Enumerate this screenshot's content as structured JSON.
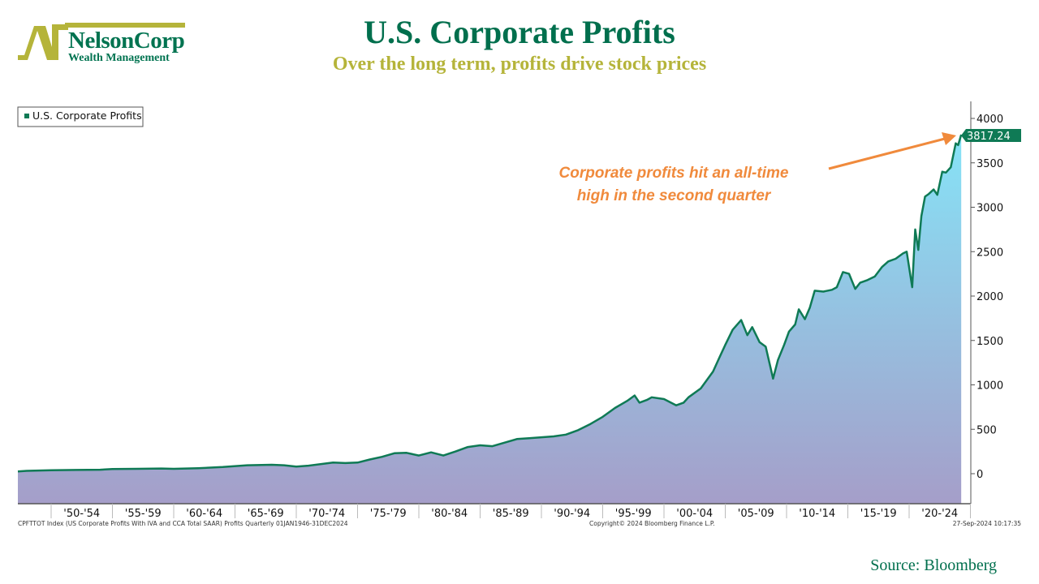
{
  "logo": {
    "name": "NelsonCorp",
    "sub": "Wealth Management"
  },
  "header": {
    "title": "U.S. Corporate Profits",
    "subtitle": "Over the long term, profits drive stock prices"
  },
  "footer": {
    "description": "CPFTTOT Index (US Corporate Profits With IVA and CCA Total SAAR) Profits  Quarterly 01JAN1946-31DEC2024",
    "copyright": "Copyright© 2024 Bloomberg Finance L.P.",
    "timestamp": "27-Sep-2024 10:17:35",
    "source": "Source: Bloomberg"
  },
  "colors": {
    "line": "#0f7a55",
    "fill_top": "#86e3f7",
    "fill_bottom": "#a59ec9",
    "annotation": "#f08a3c",
    "title": "#006f4d",
    "subtitle": "#b5b43a"
  },
  "chart_data": {
    "type": "area",
    "legend": {
      "label": "U.S. Corporate Profits",
      "placement": "top-left"
    },
    "last_value_label": "3817.24",
    "annotation": {
      "line1": "Corporate profits hit an all-time",
      "line2": "high in the second quarter"
    },
    "xlim": [
      1946,
      2025
    ],
    "ylim": [
      -350,
      4200
    ],
    "y_ticks": [
      0,
      500,
      1000,
      1500,
      2000,
      2500,
      3000,
      3500,
      4000
    ],
    "x_tick_labels": [
      "'50-'54",
      "'55-'59",
      "'60-'64",
      "'65-'69",
      "'70-'74",
      "'75-'79",
      "'80-'84",
      "'85-'89",
      "'90-'94",
      "'95-'99",
      "'00-'04",
      "'05-'09",
      "'10-'14",
      "'15-'19",
      "'20-'24"
    ],
    "x_tick_starts": [
      1950,
      1955,
      1960,
      1965,
      1970,
      1975,
      1980,
      1985,
      1990,
      1995,
      2000,
      2005,
      2010,
      2015,
      2020
    ],
    "points": [
      [
        1946.5,
        25
      ],
      [
        1948,
        32
      ],
      [
        1950,
        38
      ],
      [
        1952,
        42
      ],
      [
        1954,
        45
      ],
      [
        1955,
        52
      ],
      [
        1957,
        55
      ],
      [
        1959,
        58
      ],
      [
        1960,
        55
      ],
      [
        1962,
        62
      ],
      [
        1964,
        75
      ],
      [
        1966,
        95
      ],
      [
        1968,
        100
      ],
      [
        1969,
        95
      ],
      [
        1970,
        80
      ],
      [
        1971,
        90
      ],
      [
        1973,
        125
      ],
      [
        1974,
        120
      ],
      [
        1975,
        125
      ],
      [
        1976,
        160
      ],
      [
        1977,
        190
      ],
      [
        1978,
        230
      ],
      [
        1979,
        235
      ],
      [
        1980,
        205
      ],
      [
        1981,
        240
      ],
      [
        1982,
        205
      ],
      [
        1983,
        250
      ],
      [
        1984,
        300
      ],
      [
        1985,
        320
      ],
      [
        1986,
        310
      ],
      [
        1987,
        350
      ],
      [
        1988,
        390
      ],
      [
        1989,
        400
      ],
      [
        1990,
        410
      ],
      [
        1991,
        420
      ],
      [
        1992,
        440
      ],
      [
        1993,
        490
      ],
      [
        1994,
        560
      ],
      [
        1995,
        640
      ],
      [
        1996,
        740
      ],
      [
        1997,
        820
      ],
      [
        1997.6,
        880
      ],
      [
        1998,
        800
      ],
      [
        1998.6,
        830
      ],
      [
        1999,
        860
      ],
      [
        2000,
        840
      ],
      [
        2001,
        770
      ],
      [
        2001.6,
        800
      ],
      [
        2002,
        860
      ],
      [
        2003,
        960
      ],
      [
        2004,
        1150
      ],
      [
        2004.5,
        1300
      ],
      [
        2005,
        1450
      ],
      [
        2005.6,
        1620
      ],
      [
        2006.3,
        1730
      ],
      [
        2006.8,
        1560
      ],
      [
        2007.2,
        1650
      ],
      [
        2007.8,
        1480
      ],
      [
        2008.3,
        1430
      ],
      [
        2008.9,
        1070
      ],
      [
        2009.3,
        1280
      ],
      [
        2009.8,
        1450
      ],
      [
        2010.2,
        1600
      ],
      [
        2010.7,
        1680
      ],
      [
        2011,
        1850
      ],
      [
        2011.5,
        1740
      ],
      [
        2011.9,
        1870
      ],
      [
        2012.3,
        2060
      ],
      [
        2013,
        2050
      ],
      [
        2013.7,
        2070
      ],
      [
        2014.1,
        2100
      ],
      [
        2014.6,
        2270
      ],
      [
        2015.1,
        2250
      ],
      [
        2015.6,
        2080
      ],
      [
        2016,
        2150
      ],
      [
        2016.6,
        2180
      ],
      [
        2017.2,
        2220
      ],
      [
        2017.8,
        2330
      ],
      [
        2018.3,
        2390
      ],
      [
        2018.9,
        2420
      ],
      [
        2019.5,
        2480
      ],
      [
        2019.8,
        2500
      ],
      [
        2020.25,
        2100
      ],
      [
        2020.5,
        2750
      ],
      [
        2020.75,
        2520
      ],
      [
        2021,
        2900
      ],
      [
        2021.3,
        3120
      ],
      [
        2021.6,
        3150
      ],
      [
        2022,
        3200
      ],
      [
        2022.3,
        3140
      ],
      [
        2022.7,
        3400
      ],
      [
        2023,
        3390
      ],
      [
        2023.4,
        3450
      ],
      [
        2023.8,
        3720
      ],
      [
        2024,
        3700
      ],
      [
        2024.25,
        3817.24
      ]
    ]
  }
}
